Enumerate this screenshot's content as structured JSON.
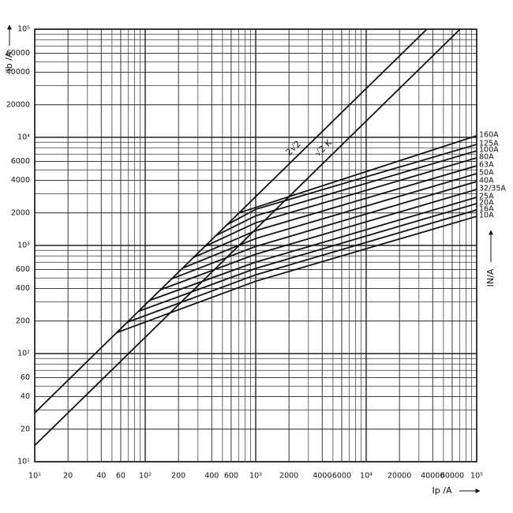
{
  "chart_data": {
    "type": "line",
    "x_label": "Ip /A",
    "y_label": "Ib /A",
    "y2_label": "IN/A",
    "log_x": true,
    "log_y": true,
    "grid": true,
    "xlim": [
      10,
      100000
    ],
    "ylim": [
      10,
      100000
    ],
    "xticks": [
      {
        "value": 10,
        "label": "10¹"
      },
      20,
      40,
      60,
      {
        "value": 100,
        "label": "10²"
      },
      200,
      400,
      600,
      {
        "value": 1000,
        "label": "10³"
      },
      2000,
      4000,
      6000,
      {
        "value": 10000,
        "label": "10⁴"
      },
      20000,
      40000,
      60000,
      {
        "value": 100000,
        "label": "10⁵"
      }
    ],
    "yticks": [
      {
        "value": 10,
        "label": "10¹"
      },
      20,
      40,
      60,
      {
        "value": 100,
        "label": "10²"
      },
      200,
      400,
      600,
      {
        "value": 1000,
        "label": "10³"
      },
      2000,
      4000,
      6000,
      {
        "value": 10000,
        "label": "10⁴"
      },
      20000,
      40000,
      60000,
      {
        "value": 100000,
        "label": "10⁵"
      }
    ],
    "xminor": [
      30,
      50,
      70,
      80,
      90,
      300,
      500,
      700,
      800,
      900,
      3000,
      5000,
      7000,
      8000,
      9000,
      30000,
      50000,
      70000,
      80000,
      90000
    ],
    "yminor": [
      30,
      50,
      70,
      80,
      90,
      300,
      500,
      700,
      800,
      900,
      3000,
      5000,
      7000,
      8000,
      9000,
      30000,
      50000,
      70000,
      80000,
      90000
    ],
    "series": [
      {
        "name": "2√2",
        "color": "#111",
        "x": [
          10,
          35355
        ],
        "values": [
          28.3,
          100000
        ]
      },
      {
        "name": "√2 K",
        "color": "#111",
        "x": [
          10,
          70711
        ],
        "values": [
          14.14,
          100000
        ]
      },
      {
        "name": "160A",
        "color": "#111",
        "x": [
          708,
          100000
        ],
        "values": [
          2003,
          10350
        ]
      },
      {
        "name": "125A",
        "color": "#111",
        "x": [
          550,
          1000,
          100000
        ],
        "values": [
          1556,
          2160,
          8600
        ]
      },
      {
        "name": "100A",
        "color": "#111",
        "x": [
          437,
          1000,
          100000
        ],
        "values": [
          1236,
          1880,
          7500
        ]
      },
      {
        "name": "80A",
        "color": "#111",
        "x": [
          347,
          1000,
          100000
        ],
        "values": [
          981,
          1620,
          6460
        ]
      },
      {
        "name": "63A",
        "color": "#111",
        "x": [
          275,
          1000,
          100000
        ],
        "values": [
          778,
          1370,
          5460
        ]
      },
      {
        "name": "50A",
        "color": "#111",
        "x": [
          219,
          1000,
          100000
        ],
        "values": [
          619,
          1160,
          4620
        ]
      },
      {
        "name": "40A",
        "color": "#111",
        "x": [
          174,
          1000,
          100000
        ],
        "values": [
          492,
          980,
          3900
        ]
      },
      {
        "name": "32/35A",
        "color": "#111",
        "x": [
          138,
          1000,
          100000
        ],
        "values": [
          390,
          829,
          3300
        ]
      },
      {
        "name": "25A",
        "color": "#111",
        "x": [
          110,
          1000,
          100000
        ],
        "values": [
          311,
          701,
          2790
        ]
      },
      {
        "name": "20A",
        "color": "#111",
        "x": [
          87,
          1000,
          100000
        ],
        "values": [
          246,
          613,
          2440
        ]
      },
      {
        "name": "16A",
        "color": "#111",
        "x": [
          69,
          1000,
          100000
        ],
        "values": [
          195,
          535,
          2130
        ]
      },
      {
        "name": "10A",
        "color": "#111",
        "x": [
          55,
          1000,
          100000
        ],
        "values": [
          156,
          467,
          1860
        ]
      }
    ]
  }
}
